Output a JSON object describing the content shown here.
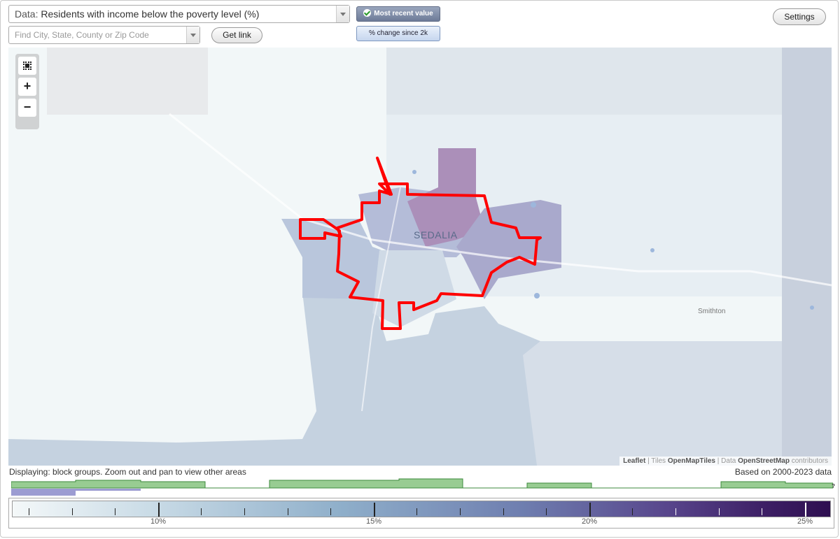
{
  "controls": {
    "data_prefix": "Data:",
    "data_value": "Residents with income below the poverty level (%)",
    "find_placeholder": "Find City, State, County or Zip Code",
    "get_link_label": "Get link",
    "toggle_recent_label": "Most recent value",
    "toggle_change_label": "% change since 2k",
    "settings_label": "Settings"
  },
  "map": {
    "city_label": "SEDALIA",
    "town_label": "Smithton",
    "attribution": {
      "leaflet": "Leaflet",
      "sep1": " | Tiles ",
      "tiles": "OpenMapTiles",
      "sep2": " | Data ",
      "data": "OpenStreetMap",
      "contributors": " contributors"
    }
  },
  "status": {
    "displaying": "Displaying: block groups. Zoom out and pan to view other areas",
    "based_on": "Based on 2000-2023 data",
    "unknown_marker": "?"
  },
  "legend": {
    "tick_labels": [
      "10%",
      "15%",
      "20%",
      "25%"
    ],
    "colors": {
      "low": "#f4f8f9",
      "mid": "#8fafca",
      "high": "#2e0f50",
      "boundary": "#ff0000"
    }
  }
}
